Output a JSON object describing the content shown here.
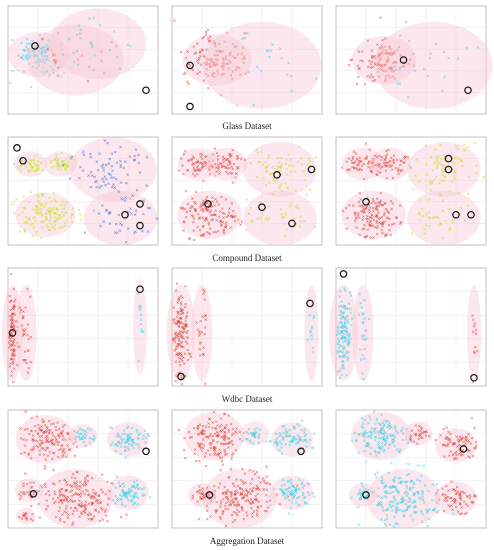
{
  "colors": {
    "red": "#e0453a",
    "cyan": "#3fd0e6",
    "blue": "#3a6fe0",
    "yellow": "#c9df2a",
    "pink_halo": "#f7c9d6",
    "outlier": "#111111"
  },
  "captions": [
    "Glass Dataset",
    "Compound Dataset",
    "Wdbc Dataset",
    "Aggregation Dataset"
  ],
  "chart_data": [
    {
      "type": "scatter",
      "title": "Glass Dataset",
      "grid": true,
      "panels": 3,
      "yticks": [
        "",
        "",
        "",
        "",
        ""
      ],
      "panels_data": [
        {
          "clusters": [
            {
              "color": "cyan",
              "center": [
                0.2,
                0.45
              ],
              "spread": 0.12,
              "n": 120
            },
            {
              "color": "red",
              "center": [
                0.45,
                0.5
              ],
              "spread": 0.2,
              "n": 20
            },
            {
              "color": "cyan",
              "center": [
                0.6,
                0.35
              ],
              "spread": 0.2,
              "n": 25
            }
          ],
          "outliers": [
            [
              0.18,
              0.37
            ],
            [
              0.92,
              0.78
            ]
          ]
        },
        {
          "clusters": [
            {
              "color": "red",
              "center": [
                0.3,
                0.5
              ],
              "spread": 0.14,
              "n": 130
            },
            {
              "color": "cyan",
              "center": [
                0.6,
                0.55
              ],
              "spread": 0.25,
              "n": 20
            }
          ],
          "outliers": [
            [
              0.12,
              0.55
            ],
            [
              0.12,
              0.93
            ]
          ]
        },
        {
          "clusters": [
            {
              "color": "red",
              "center": [
                0.32,
                0.5
              ],
              "spread": 0.13,
              "n": 130
            },
            {
              "color": "cyan",
              "center": [
                0.65,
                0.55
              ],
              "spread": 0.25,
              "n": 20
            }
          ],
          "outliers": [
            [
              0.45,
              0.5
            ],
            [
              0.88,
              0.78
            ]
          ]
        }
      ]
    },
    {
      "type": "scatter",
      "title": "Compound Dataset",
      "grid": true,
      "panels": 3,
      "panels_data": [
        {
          "clusters": [
            {
              "color": "yellow",
              "center": [
                0.15,
                0.25
              ],
              "spread": 0.06,
              "n": 40
            },
            {
              "color": "yellow",
              "center": [
                0.35,
                0.25
              ],
              "spread": 0.06,
              "n": 40
            },
            {
              "color": "blue",
              "center": [
                0.7,
                0.3
              ],
              "spread": 0.18,
              "n": 80
            },
            {
              "color": "yellow",
              "center": [
                0.25,
                0.72
              ],
              "spread": 0.12,
              "n": 130
            },
            {
              "color": "blue",
              "center": [
                0.75,
                0.75
              ],
              "spread": 0.15,
              "n": 40
            }
          ],
          "outliers": [
            [
              0.06,
              0.1
            ],
            [
              0.1,
              0.22
            ],
            [
              0.88,
              0.62
            ],
            [
              0.78,
              0.72
            ],
            [
              0.88,
              0.82
            ]
          ]
        },
        {
          "clusters": [
            {
              "color": "red",
              "center": [
                0.18,
                0.25
              ],
              "spread": 0.08,
              "n": 60
            },
            {
              "color": "red",
              "center": [
                0.36,
                0.25
              ],
              "spread": 0.08,
              "n": 60
            },
            {
              "color": "yellow",
              "center": [
                0.72,
                0.3
              ],
              "spread": 0.15,
              "n": 70
            },
            {
              "color": "red",
              "center": [
                0.25,
                0.72
              ],
              "spread": 0.13,
              "n": 140
            },
            {
              "color": "yellow",
              "center": [
                0.72,
                0.75
              ],
              "spread": 0.15,
              "n": 40
            }
          ],
          "outliers": [
            [
              0.7,
              0.35
            ],
            [
              0.93,
              0.3
            ],
            [
              0.24,
              0.62
            ],
            [
              0.6,
              0.65
            ],
            [
              0.8,
              0.8
            ]
          ]
        },
        {
          "clusters": [
            {
              "color": "red",
              "center": [
                0.18,
                0.25
              ],
              "spread": 0.08,
              "n": 60
            },
            {
              "color": "red",
              "center": [
                0.36,
                0.25
              ],
              "spread": 0.08,
              "n": 60
            },
            {
              "color": "yellow",
              "center": [
                0.72,
                0.3
              ],
              "spread": 0.15,
              "n": 70
            },
            {
              "color": "red",
              "center": [
                0.25,
                0.72
              ],
              "spread": 0.13,
              "n": 140
            },
            {
              "color": "yellow",
              "center": [
                0.72,
                0.75
              ],
              "spread": 0.15,
              "n": 40
            }
          ],
          "outliers": [
            [
              0.75,
              0.2
            ],
            [
              0.75,
              0.3
            ],
            [
              0.8,
              0.72
            ],
            [
              0.9,
              0.72
            ],
            [
              0.2,
              0.6
            ]
          ]
        }
      ]
    },
    {
      "type": "scatter",
      "title": "Wdbc Dataset",
      "grid": true,
      "panels": 3,
      "panels_data": [
        {
          "clusters": [
            {
              "color": "red",
              "center": [
                0.03,
                0.55
              ],
              "spread": 0.02,
              "n": 120,
              "tall": true
            },
            {
              "color": "red",
              "center": [
                0.12,
                0.55
              ],
              "spread": 0.02,
              "n": 30,
              "tall": true
            },
            {
              "color": "cyan",
              "center": [
                0.88,
                0.5
              ],
              "spread": 0.01,
              "n": 12,
              "tall": true
            }
          ],
          "outliers": [
            [
              0.03,
              0.55
            ],
            [
              0.88,
              0.18
            ]
          ]
        },
        {
          "clusters": [
            {
              "color": "red",
              "center": [
                0.06,
                0.55
              ],
              "spread": 0.03,
              "n": 140,
              "tall": true
            },
            {
              "color": "red",
              "center": [
                0.2,
                0.55
              ],
              "spread": 0.02,
              "n": 25,
              "tall": true
            },
            {
              "color": "cyan",
              "center": [
                0.93,
                0.55
              ],
              "spread": 0.01,
              "n": 12,
              "tall": true
            }
          ],
          "outliers": [
            [
              0.06,
              0.92
            ],
            [
              0.92,
              0.3
            ]
          ]
        },
        {
          "clusters": [
            {
              "color": "cyan",
              "center": [
                0.05,
                0.55
              ],
              "spread": 0.03,
              "n": 140,
              "tall": true
            },
            {
              "color": "cyan",
              "center": [
                0.18,
                0.55
              ],
              "spread": 0.02,
              "n": 25,
              "tall": true
            },
            {
              "color": "red",
              "center": [
                0.92,
                0.55
              ],
              "spread": 0.01,
              "n": 12,
              "tall": true
            }
          ],
          "outliers": [
            [
              0.05,
              0.05
            ],
            [
              0.92,
              0.93
            ]
          ]
        }
      ]
    },
    {
      "type": "scatter",
      "title": "Aggregation Dataset",
      "grid": true,
      "panels": 3,
      "panels_data": [
        {
          "clusters": [
            {
              "color": "red",
              "center": [
                0.25,
                0.25
              ],
              "spread": 0.12,
              "n": 150
            },
            {
              "color": "cyan",
              "center": [
                0.5,
                0.22
              ],
              "spread": 0.05,
              "n": 30
            },
            {
              "color": "cyan",
              "center": [
                0.8,
                0.25
              ],
              "spread": 0.08,
              "n": 80
            },
            {
              "color": "cyan",
              "center": [
                0.8,
                0.7
              ],
              "spread": 0.08,
              "n": 80
            },
            {
              "color": "red",
              "center": [
                0.45,
                0.75
              ],
              "spread": 0.15,
              "n": 200
            },
            {
              "color": "red",
              "center": [
                0.14,
                0.68
              ],
              "spread": 0.05,
              "n": 25
            },
            {
              "color": "red",
              "center": [
                0.12,
                0.9
              ],
              "spread": 0.03,
              "n": 15
            }
          ],
          "outliers": [
            [
              0.92,
              0.35
            ],
            [
              0.17,
              0.71
            ]
          ]
        },
        {
          "clusters": [
            {
              "color": "red",
              "center": [
                0.28,
                0.22
              ],
              "spread": 0.12,
              "n": 150
            },
            {
              "color": "cyan",
              "center": [
                0.55,
                0.2
              ],
              "spread": 0.05,
              "n": 30
            },
            {
              "color": "cyan",
              "center": [
                0.8,
                0.25
              ],
              "spread": 0.08,
              "n": 80
            },
            {
              "color": "cyan",
              "center": [
                0.8,
                0.7
              ],
              "spread": 0.08,
              "n": 80
            },
            {
              "color": "red",
              "center": [
                0.45,
                0.75
              ],
              "spread": 0.15,
              "n": 200
            },
            {
              "color": "red",
              "center": [
                0.2,
                0.72
              ],
              "spread": 0.05,
              "n": 25
            }
          ],
          "outliers": [
            [
              0.86,
              0.35
            ],
            [
              0.25,
              0.72
            ]
          ]
        },
        {
          "clusters": [
            {
              "color": "cyan",
              "center": [
                0.3,
                0.22
              ],
              "spread": 0.12,
              "n": 150
            },
            {
              "color": "red",
              "center": [
                0.55,
                0.2
              ],
              "spread": 0.05,
              "n": 30
            },
            {
              "color": "red",
              "center": [
                0.8,
                0.3
              ],
              "spread": 0.08,
              "n": 80
            },
            {
              "color": "red",
              "center": [
                0.8,
                0.75
              ],
              "spread": 0.08,
              "n": 70
            },
            {
              "color": "cyan",
              "center": [
                0.45,
                0.75
              ],
              "spread": 0.15,
              "n": 200
            },
            {
              "color": "cyan",
              "center": [
                0.18,
                0.72
              ],
              "spread": 0.05,
              "n": 25
            }
          ],
          "outliers": [
            [
              0.2,
              0.72
            ],
            [
              0.85,
              0.33
            ]
          ]
        }
      ]
    }
  ]
}
